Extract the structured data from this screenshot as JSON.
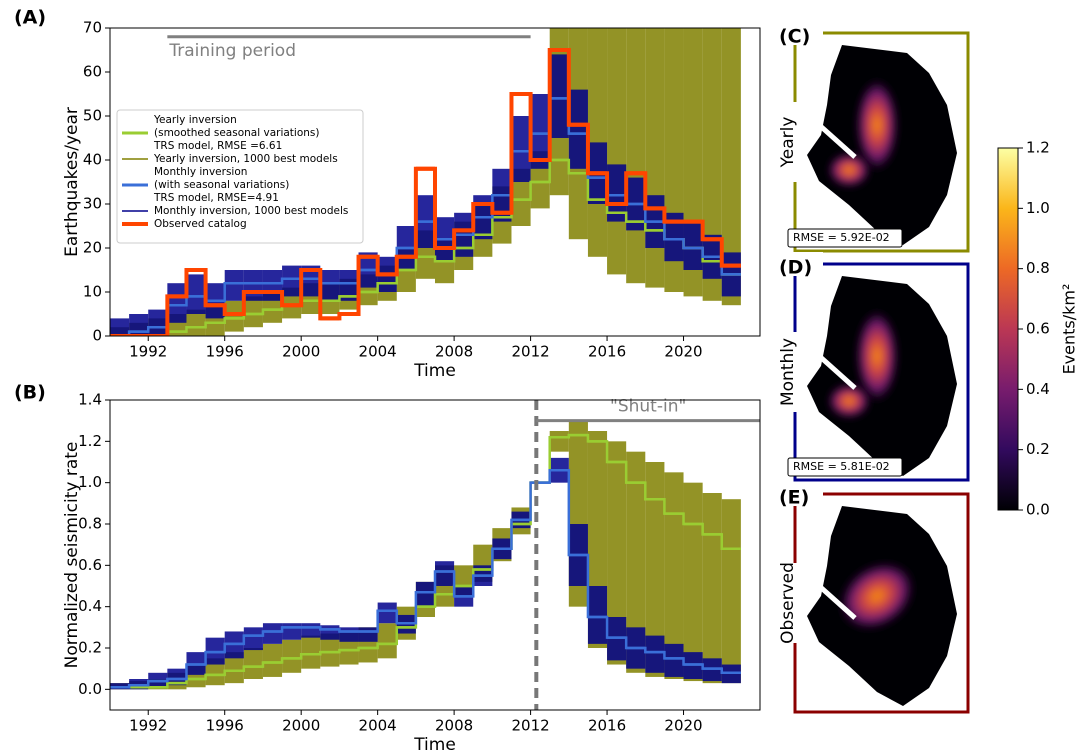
{
  "chart_data": [
    {
      "type": "step",
      "panel_label": "(A)",
      "xlabel": "Time",
      "ylabel": "Earthquakes/year",
      "xlim": [
        1990,
        2024
      ],
      "ylim": [
        0,
        70
      ],
      "xticks": [
        1992,
        1996,
        2000,
        2004,
        2008,
        2012,
        2016,
        2020
      ],
      "yticks": [
        0,
        10,
        20,
        30,
        40,
        50,
        60,
        70
      ],
      "annotation": {
        "text": "Training period",
        "x": [
          1993,
          2012
        ],
        "y": 68
      },
      "x": [
        1990,
        1991,
        1992,
        1993,
        1994,
        1995,
        1996,
        1997,
        1998,
        1999,
        2000,
        2001,
        2002,
        2003,
        2004,
        2005,
        2006,
        2007,
        2008,
        2009,
        2010,
        2011,
        2012,
        2013,
        2014,
        2015,
        2016,
        2017,
        2018,
        2019,
        2020,
        2021,
        2022
      ],
      "series": [
        {
          "name": [
            "Yearly inversion",
            "(smoothed seasonal variations)",
            "TRS model, RMSE =6.61"
          ],
          "color": "#9acd32",
          "values": [
            0,
            0,
            0,
            1,
            2,
            3,
            4,
            5,
            6,
            7,
            8,
            8,
            9,
            10,
            12,
            15,
            18,
            17,
            20,
            23,
            27,
            31,
            35,
            40,
            37,
            31,
            28,
            26,
            24,
            22,
            20,
            17,
            14
          ]
        },
        {
          "name": [
            "Yearly inversion, 1000 best models"
          ],
          "color": "#808000",
          "lower": [
            0,
            0,
            0,
            0,
            0,
            0,
            1,
            2,
            3,
            4,
            5,
            5,
            6,
            7,
            8,
            10,
            13,
            12,
            15,
            18,
            21,
            25,
            29,
            32,
            22,
            18,
            14,
            12,
            11,
            10,
            9,
            8,
            7
          ],
          "upper": [
            2,
            3,
            4,
            5,
            6,
            7,
            8,
            9,
            10,
            11,
            12,
            12,
            13,
            14,
            16,
            20,
            24,
            22,
            26,
            30,
            34,
            38,
            42,
            70,
            70,
            70,
            70,
            70,
            70,
            70,
            70,
            70,
            70
          ]
        },
        {
          "name": [
            "Monthly inversion",
            "(with seasonal variations)",
            "TRS model, RMSE=4.91"
          ],
          "color": "#3a6fd8",
          "values": [
            0,
            1,
            2,
            7,
            9,
            8,
            12,
            12,
            12,
            13,
            13,
            12,
            12,
            15,
            14,
            20,
            26,
            22,
            23,
            27,
            32,
            42,
            46,
            54,
            46,
            36,
            32,
            30,
            26,
            22,
            20,
            18,
            14
          ]
        },
        {
          "name": [
            "Monthly inversion, 1000 best models"
          ],
          "color": "#00008b",
          "lower": [
            0,
            0,
            0,
            3,
            5,
            4,
            8,
            8,
            8,
            9,
            9,
            8,
            8,
            11,
            10,
            15,
            20,
            17,
            18,
            22,
            26,
            35,
            38,
            45,
            38,
            30,
            26,
            24,
            20,
            17,
            15,
            13,
            9
          ],
          "upper": [
            4,
            5,
            6,
            12,
            14,
            12,
            15,
            15,
            15,
            16,
            16,
            15,
            15,
            19,
            18,
            25,
            32,
            27,
            28,
            32,
            38,
            50,
            55,
            64,
            56,
            44,
            39,
            36,
            32,
            28,
            26,
            23,
            19
          ]
        },
        {
          "name": [
            "Observed catalog"
          ],
          "color": "#ff4500",
          "values": [
            0,
            0,
            0,
            9,
            15,
            7,
            5,
            10,
            10,
            7,
            15,
            4,
            5,
            18,
            14,
            18,
            38,
            20,
            24,
            30,
            28,
            55,
            40,
            65,
            48,
            37,
            30,
            37,
            29,
            26,
            26,
            22,
            16
          ]
        }
      ]
    },
    {
      "type": "step",
      "panel_label": "(B)",
      "xlabel": "Time",
      "ylabel": "Normalized seismicity rate",
      "xlim": [
        1990,
        2024
      ],
      "ylim": [
        -0.1,
        1.4
      ],
      "xticks": [
        1992,
        1996,
        2000,
        2004,
        2008,
        2012,
        2016,
        2020
      ],
      "yticks": [
        {
          "value": 0,
          "label": "0.0"
        },
        0.2,
        0.4,
        0.6,
        0.8,
        {
          "value": 1,
          "label": "1.0"
        },
        1.2,
        1.4
      ],
      "annotation": {
        "text": "\"Shut-in\"",
        "x": [
          2012.3,
          2024
        ],
        "y": 1.3
      },
      "vline": 2012.3,
      "x": [
        1990,
        1991,
        1992,
        1993,
        1994,
        1995,
        1996,
        1997,
        1998,
        1999,
        2000,
        2001,
        2002,
        2003,
        2004,
        2005,
        2006,
        2007,
        2008,
        2009,
        2010,
        2011,
        2012,
        2013,
        2014,
        2015,
        2016,
        2017,
        2018,
        2019,
        2020,
        2021,
        2022
      ],
      "series": [
        {
          "color": "#808000",
          "lower": [
            0,
            0,
            0,
            0,
            0.01,
            0.02,
            0.03,
            0.05,
            0.06,
            0.08,
            0.1,
            0.11,
            0.12,
            0.13,
            0.15,
            0.24,
            0.35,
            0.4,
            0.45,
            0.52,
            0.62,
            0.75,
            1.0,
            1.15,
            0.4,
            0.2,
            0.12,
            0.08,
            0.06,
            0.05,
            0.04,
            0.03,
            0.03
          ],
          "upper": [
            0.03,
            0.04,
            0.05,
            0.08,
            0.12,
            0.15,
            0.18,
            0.2,
            0.22,
            0.24,
            0.26,
            0.27,
            0.28,
            0.3,
            0.32,
            0.4,
            0.52,
            0.6,
            0.6,
            0.7,
            0.78,
            0.88,
            1.0,
            1.25,
            1.3,
            1.25,
            1.2,
            1.15,
            1.1,
            1.05,
            1.0,
            0.95,
            0.92
          ]
        },
        {
          "color": "#00008b",
          "lower": [
            0,
            0,
            0.01,
            0.02,
            0.07,
            0.12,
            0.15,
            0.19,
            0.22,
            0.24,
            0.25,
            0.24,
            0.23,
            0.23,
            0.32,
            0.27,
            0.4,
            0.5,
            0.4,
            0.5,
            0.63,
            0.78,
            1.0,
            1.0,
            0.5,
            0.22,
            0.14,
            0.1,
            0.08,
            0.06,
            0.05,
            0.04,
            0.03
          ],
          "upper": [
            0.03,
            0.05,
            0.08,
            0.1,
            0.18,
            0.25,
            0.28,
            0.3,
            0.32,
            0.32,
            0.32,
            0.31,
            0.3,
            0.3,
            0.42,
            0.36,
            0.52,
            0.62,
            0.5,
            0.6,
            0.73,
            0.86,
            1.0,
            1.12,
            0.8,
            0.5,
            0.35,
            0.3,
            0.26,
            0.22,
            0.18,
            0.15,
            0.12
          ]
        },
        {
          "color": "#9acd32",
          "values": [
            0.01,
            0.01,
            0.01,
            0.03,
            0.05,
            0.07,
            0.09,
            0.11,
            0.13,
            0.15,
            0.17,
            0.18,
            0.19,
            0.2,
            0.22,
            0.3,
            0.4,
            0.46,
            0.5,
            0.58,
            0.68,
            0.8,
            1.0,
            1.22,
            1.23,
            1.2,
            1.1,
            1.0,
            0.92,
            0.85,
            0.8,
            0.75,
            0.68
          ]
        },
        {
          "color": "#3a6fd8",
          "values": [
            0.01,
            0.02,
            0.04,
            0.05,
            0.12,
            0.18,
            0.22,
            0.26,
            0.28,
            0.3,
            0.3,
            0.29,
            0.28,
            0.28,
            0.38,
            0.32,
            0.47,
            0.57,
            0.45,
            0.55,
            0.68,
            0.82,
            1.0,
            1.06,
            0.65,
            0.35,
            0.25,
            0.2,
            0.18,
            0.15,
            0.12,
            0.1,
            0.08
          ]
        }
      ]
    },
    {
      "type": "colorbar",
      "ylabel": "Events/km²",
      "ylim": [
        0,
        1.2
      ],
      "yticks": [
        {
          "value": 0,
          "label": "0.0"
        },
        0.2,
        0.4,
        0.6,
        0.8,
        {
          "value": 1,
          "label": "1.0"
        },
        1.2
      ],
      "colors": [
        "#000004",
        "#320a5e",
        "#781c6d",
        "#bb3754",
        "#ed6925",
        "#fbb61a",
        "#fcffa4"
      ]
    }
  ],
  "maps": [
    {
      "label": "(C)",
      "side": "Yearly",
      "rmse": "RMSE = 5.92E-02",
      "frame": "#8b8b00"
    },
    {
      "label": "(D)",
      "side": "Monthly",
      "rmse": "RMSE = 5.81E-02",
      "frame": "#00008b"
    },
    {
      "label": "(E)",
      "side": "Observed",
      "frame": "#8b0000"
    }
  ]
}
